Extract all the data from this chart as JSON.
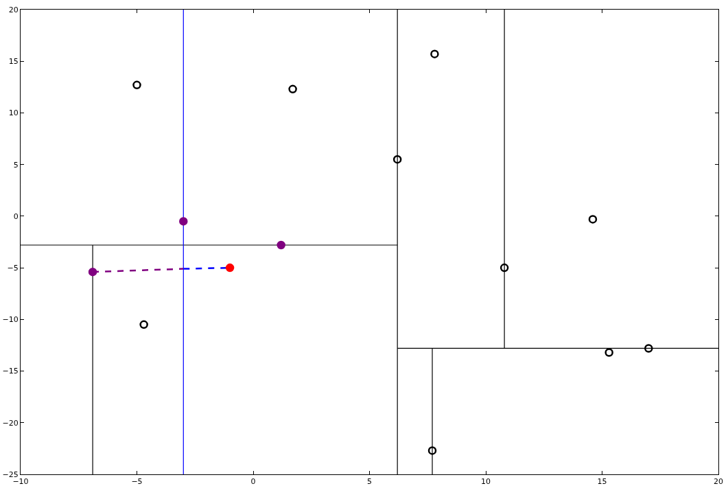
{
  "chart_data": {
    "type": "scatter",
    "xlim": [
      -10,
      20
    ],
    "ylim": [
      -25,
      20
    ],
    "xticks": [
      {
        "value": -10,
        "label": "−10"
      },
      {
        "value": -5,
        "label": "−5"
      },
      0,
      5,
      10,
      15,
      20
    ],
    "yticks": [
      {
        "value": -25,
        "label": "−25"
      },
      {
        "value": -20,
        "label": "−20"
      },
      {
        "value": -15,
        "label": "−15"
      },
      {
        "value": -10,
        "label": "−10"
      },
      {
        "value": -5,
        "label": "−5"
      },
      0,
      5,
      10,
      15,
      20
    ],
    "grid": false,
    "series": [
      {
        "type": "line",
        "color": "#000000",
        "line_style": "solid",
        "marker": "none",
        "x": [
          6.2,
          6.2
        ],
        "values": [
          -25,
          20
        ]
      },
      {
        "type": "line",
        "color": "#000000",
        "line_style": "solid",
        "marker": "none",
        "x": [
          -10,
          6.2
        ],
        "values": [
          -2.8,
          -2.8
        ]
      },
      {
        "type": "line",
        "color": "#000000",
        "line_style": "solid",
        "marker": "none",
        "x": [
          -6.9,
          -6.9
        ],
        "values": [
          -25,
          -2.8
        ]
      },
      {
        "type": "line",
        "color": "#000000",
        "line_style": "solid",
        "marker": "none",
        "x": [
          6.2,
          20
        ],
        "values": [
          -12.8,
          -12.8
        ]
      },
      {
        "type": "line",
        "color": "#000000",
        "line_style": "solid",
        "marker": "none",
        "x": [
          10.8,
          10.8
        ],
        "values": [
          -12.8,
          20
        ]
      },
      {
        "type": "line",
        "color": "#000000",
        "line_style": "solid",
        "marker": "none",
        "x": [
          7.7,
          7.7
        ],
        "values": [
          -25,
          -12.8
        ]
      },
      {
        "type": "line",
        "color": "#0000ff",
        "line_style": "solid",
        "marker": "none",
        "x": [
          -3.0,
          -3.0
        ],
        "values": [
          -25,
          20
        ]
      },
      {
        "type": "line",
        "color": "#800080",
        "line_style": "dashed",
        "marker": "none",
        "x": [
          -6.9,
          -3.0
        ],
        "values": [
          -5.4,
          -5.1
        ]
      },
      {
        "type": "line",
        "color": "#0000ff",
        "line_style": "dashed",
        "marker": "none",
        "x": [
          -3.0,
          -1.0
        ],
        "values": [
          -5.1,
          -5.0
        ]
      },
      {
        "type": "scatter",
        "color": "#000000",
        "marker": "circle-open",
        "x": [
          -5.0,
          1.7,
          7.8,
          6.2,
          14.6,
          10.8,
          -4.7,
          15.3,
          17.0,
          7.7
        ],
        "values": [
          12.7,
          12.3,
          15.7,
          5.5,
          -0.3,
          -5.0,
          -10.5,
          -13.2,
          -12.8,
          -22.7
        ]
      },
      {
        "type": "scatter",
        "color": "#800080",
        "marker": "circle",
        "x": [
          -3.0,
          1.2,
          -6.9
        ],
        "values": [
          -0.5,
          -2.8,
          -5.4
        ]
      },
      {
        "type": "scatter",
        "color": "#ff0000",
        "marker": "circle",
        "x": [
          -1.0
        ],
        "values": [
          -5.0
        ]
      }
    ]
  }
}
